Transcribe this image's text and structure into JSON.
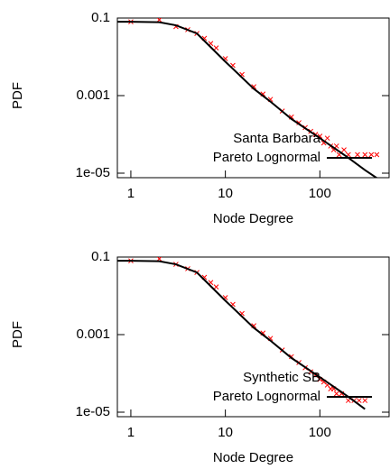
{
  "chart_data": [
    {
      "type": "scatter",
      "xlabel": "Node Degree",
      "ylabel": "PDF",
      "xscale": "log",
      "yscale": "log",
      "xlim": [
        0.72,
        540
      ],
      "ylim": [
        1e-05,
        0.1
      ],
      "xticks": [
        1,
        10,
        100
      ],
      "yticks": [
        0.1,
        0.001,
        {
          "value": 1e-05,
          "label": "1e-05"
        }
      ],
      "legend": "lower right",
      "series": [
        {
          "name": "Santa Barbara",
          "color": "#ff0000",
          "type": "scatter",
          "x": [
            1,
            2,
            3,
            4,
            5,
            6,
            7,
            8,
            10,
            12,
            15,
            20,
            25,
            30,
            40,
            50,
            60,
            70,
            80,
            90,
            100,
            110,
            120,
            130,
            140,
            150,
            160,
            180,
            200,
            250,
            300,
            350,
            400
          ],
          "values": [
            0.08,
            0.09,
            0.06,
            0.05,
            0.04,
            0.03,
            0.022,
            0.017,
            0.009,
            0.006,
            0.0035,
            0.0017,
            0.0011,
            0.0008,
            0.0004,
            0.00028,
            0.0002,
            0.00015,
            0.00012,
            0.0001,
            9e-05,
            6e-05,
            8e-05,
            5e-05,
            4e-05,
            5e-05,
            3e-05,
            4e-05,
            3e-05,
            3e-05,
            3e-05,
            3e-05,
            3e-05
          ]
        },
        {
          "name": "Pareto Lognormal",
          "color": "#000000",
          "type": "line",
          "x": [
            0.72,
            1,
            2,
            3,
            5,
            10,
            20,
            30,
            50,
            100,
            200,
            300,
            400
          ],
          "values": [
            0.08,
            0.08,
            0.078,
            0.065,
            0.04,
            0.0075,
            0.0015,
            0.0007,
            0.00025,
            8e-05,
            2.5e-05,
            1.2e-05,
            7.5e-06
          ]
        }
      ]
    },
    {
      "type": "scatter",
      "xlabel": "Node Degree",
      "ylabel": "PDF",
      "xscale": "log",
      "yscale": "log",
      "xlim": [
        0.72,
        540
      ],
      "ylim": [
        1e-05,
        0.1
      ],
      "xticks": [
        1,
        10,
        100
      ],
      "yticks": [
        0.1,
        0.001,
        {
          "value": 1e-05,
          "label": "1e-05"
        }
      ],
      "legend": "lower right",
      "series": [
        {
          "name": "Synthetic SB",
          "color": "#ff0000",
          "type": "scatter",
          "x": [
            1,
            2,
            3,
            4,
            5,
            6,
            7,
            8,
            10,
            12,
            15,
            20,
            25,
            30,
            40,
            50,
            60,
            70,
            80,
            90,
            100,
            110,
            120,
            130,
            140,
            150,
            170,
            200,
            230,
            260,
            300
          ],
          "values": [
            0.08,
            0.09,
            0.065,
            0.05,
            0.04,
            0.03,
            0.022,
            0.017,
            0.009,
            0.006,
            0.0035,
            0.0017,
            0.0011,
            0.0008,
            0.0004,
            0.00027,
            0.00019,
            0.00014,
            0.00011,
            9e-05,
            7e-05,
            6e-05,
            5e-05,
            4e-05,
            4e-05,
            3e-05,
            3e-05,
            2e-05,
            2e-05,
            2e-05,
            2e-05
          ]
        },
        {
          "name": "Pareto Lognormal",
          "color": "#000000",
          "type": "line",
          "x": [
            0.72,
            1,
            2,
            3,
            5,
            10,
            20,
            30,
            50,
            100,
            200,
            300
          ],
          "values": [
            0.08,
            0.08,
            0.078,
            0.065,
            0.04,
            0.0075,
            0.0015,
            0.0007,
            0.00025,
            8e-05,
            2.5e-05,
            1.2e-05
          ]
        }
      ]
    }
  ]
}
